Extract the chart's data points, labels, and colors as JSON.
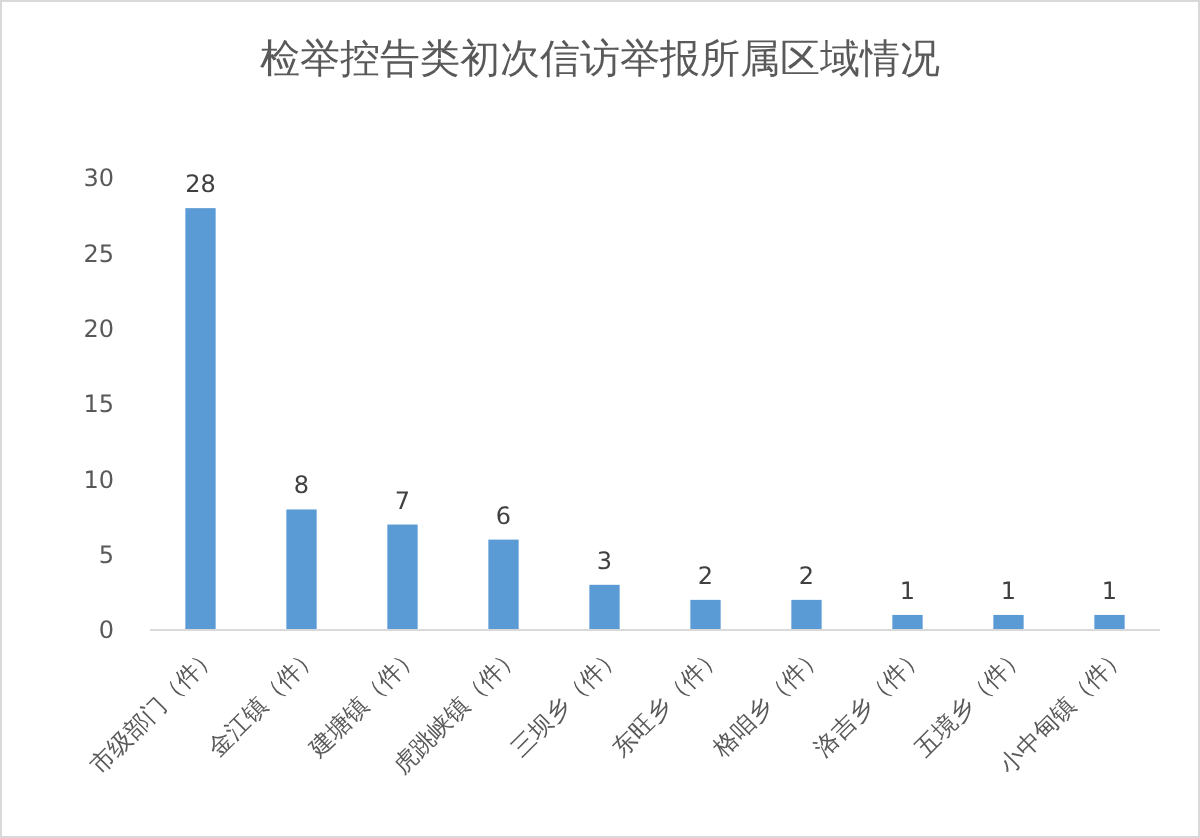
{
  "chart_data": {
    "type": "bar",
    "title": "检举控告类初次信访举报所属区域情况",
    "categories": [
      "市级部门（件）",
      "金江镇（件）",
      "建塘镇（件）",
      "虎跳峡镇（件）",
      "三坝乡（件）",
      "东旺乡（件）",
      "格咱乡（件）",
      "洛吉乡（件）",
      "五境乡（件）",
      "小中甸镇（件）"
    ],
    "values": [
      28,
      8,
      7,
      6,
      3,
      2,
      2,
      1,
      1,
      1
    ],
    "color": "#5b9bd5",
    "ylim": [
      0,
      30
    ],
    "yticks": [
      0,
      5,
      10,
      15,
      20,
      25,
      30
    ],
    "grid": false,
    "data_labels": true
  }
}
